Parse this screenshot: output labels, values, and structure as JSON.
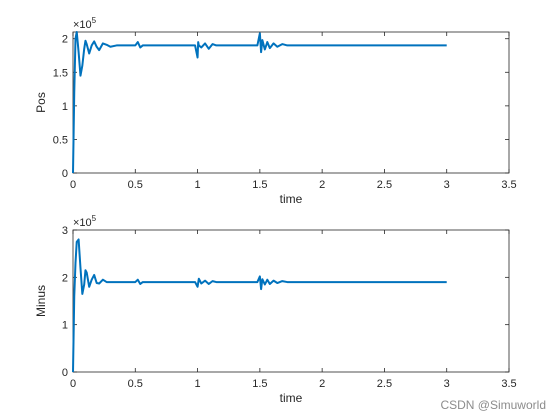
{
  "chart_data": [
    {
      "type": "line",
      "ylabel": "Pos",
      "xlabel": "time",
      "exponent_label": "×10^5",
      "exponent_base": "×10",
      "exponent_power": "5",
      "xlim": [
        0,
        3.5
      ],
      "ylim": [
        0,
        2.1
      ],
      "y_scale": 100000,
      "x_ticks": [
        "0",
        "0.5",
        "1",
        "1.5",
        "2",
        "2.5",
        "3",
        "3.5"
      ],
      "y_ticks": [
        "0",
        "0.5",
        "1",
        "1.5",
        "2"
      ],
      "y_tick_values": [
        0,
        0.5,
        1,
        1.5,
        2
      ],
      "grid": false,
      "series_color": "#0072BD",
      "series": [
        {
          "name": "",
          "x": [
            0,
            0.01,
            0.02,
            0.03,
            0.045,
            0.06,
            0.075,
            0.09,
            0.1,
            0.11,
            0.13,
            0.15,
            0.17,
            0.19,
            0.21,
            0.24,
            0.27,
            0.3,
            0.35,
            0.4,
            0.45,
            0.5,
            0.52,
            0.54,
            0.56,
            0.6,
            0.7,
            0.8,
            0.9,
            0.98,
            1.0,
            1.005,
            1.01,
            1.03,
            1.06,
            1.09,
            1.12,
            1.15,
            1.2,
            1.3,
            1.4,
            1.48,
            1.5,
            1.51,
            1.52,
            1.54,
            1.56,
            1.58,
            1.61,
            1.64,
            1.68,
            1.72,
            1.8,
            2.0,
            2.5,
            3.0
          ],
          "y": [
            0,
            1.2,
            2.0,
            2.1,
            1.8,
            1.45,
            1.6,
            1.85,
            1.97,
            1.92,
            1.78,
            1.9,
            1.96,
            1.88,
            1.83,
            1.93,
            1.91,
            1.88,
            1.9,
            1.9,
            1.9,
            1.9,
            1.95,
            1.87,
            1.9,
            1.9,
            1.9,
            1.9,
            1.9,
            1.9,
            1.72,
            1.95,
            1.9,
            1.87,
            1.93,
            1.85,
            1.92,
            1.9,
            1.9,
            1.9,
            1.9,
            1.9,
            2.08,
            1.8,
            1.98,
            1.84,
            1.95,
            1.86,
            1.93,
            1.88,
            1.92,
            1.9,
            1.9,
            1.9,
            1.9,
            1.9
          ]
        }
      ]
    },
    {
      "type": "line",
      "ylabel": "Minus",
      "xlabel": "time",
      "exponent_label": "×10^5",
      "exponent_base": "×10",
      "exponent_power": "5",
      "xlim": [
        0,
        3.5
      ],
      "ylim": [
        0,
        3
      ],
      "y_scale": 100000,
      "x_ticks": [
        "0",
        "0.5",
        "1",
        "1.5",
        "2",
        "2.5",
        "3",
        "3.5"
      ],
      "y_ticks": [
        "0",
        "1",
        "2",
        "3"
      ],
      "y_tick_values": [
        0,
        1,
        2,
        3
      ],
      "grid": false,
      "series_color": "#0072BD",
      "series": [
        {
          "name": "",
          "x": [
            0,
            0.01,
            0.02,
            0.03,
            0.045,
            0.06,
            0.075,
            0.09,
            0.1,
            0.11,
            0.13,
            0.15,
            0.17,
            0.19,
            0.21,
            0.24,
            0.27,
            0.3,
            0.35,
            0.4,
            0.45,
            0.5,
            0.52,
            0.54,
            0.56,
            0.6,
            0.7,
            0.8,
            0.9,
            0.98,
            1.0,
            1.01,
            1.03,
            1.06,
            1.09,
            1.12,
            1.15,
            1.2,
            1.3,
            1.4,
            1.48,
            1.5,
            1.51,
            1.52,
            1.54,
            1.56,
            1.58,
            1.61,
            1.64,
            1.68,
            1.72,
            1.8,
            2.0,
            2.5,
            3.0
          ],
          "y": [
            0,
            1.6,
            2.3,
            2.75,
            2.8,
            2.2,
            1.65,
            1.85,
            2.15,
            2.1,
            1.8,
            1.95,
            2.05,
            1.88,
            1.87,
            1.95,
            1.9,
            1.9,
            1.9,
            1.9,
            1.9,
            1.9,
            1.95,
            1.86,
            1.9,
            1.9,
            1.9,
            1.9,
            1.9,
            1.9,
            1.8,
            1.97,
            1.87,
            1.93,
            1.86,
            1.92,
            1.9,
            1.9,
            1.9,
            1.9,
            1.9,
            2.02,
            1.75,
            1.96,
            1.85,
            1.95,
            1.86,
            1.93,
            1.88,
            1.92,
            1.9,
            1.9,
            1.9,
            1.9,
            1.9
          ]
        }
      ]
    }
  ],
  "watermark": "CSDN @Simuworld"
}
